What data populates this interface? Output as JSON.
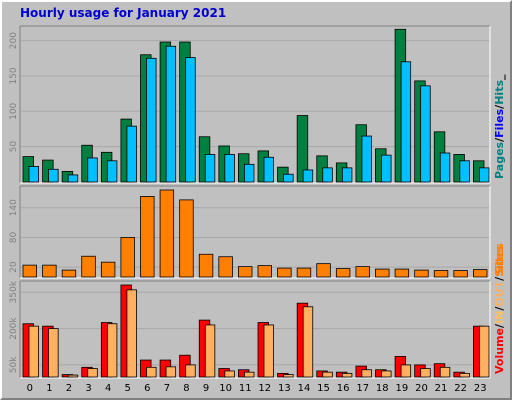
{
  "chart_data": {
    "type": "bar",
    "title": "Hourly usage for January 2021",
    "categories": [
      "0",
      "1",
      "2",
      "3",
      "4",
      "5",
      "6",
      "7",
      "8",
      "9",
      "10",
      "11",
      "12",
      "13",
      "14",
      "15",
      "16",
      "17",
      "18",
      "19",
      "20",
      "21",
      "22",
      "23"
    ],
    "panels": [
      {
        "id": "hits",
        "ylim": [
          0,
          215
        ],
        "yticks": [
          "50",
          "100",
          "150",
          "200"
        ],
        "ytick_values": [
          50,
          100,
          150,
          200
        ],
        "series": [
          {
            "name": "Pages",
            "color": "#008040",
            "values": [
              36,
              31,
              15,
              52,
              42,
              89,
              180,
              198,
              198,
              64,
              51,
              40,
              44,
              21,
              94,
              37,
              27,
              81,
              47,
              216,
              143,
              71,
              39,
              30
            ]
          },
          {
            "name": "Files",
            "color": "#0000ff",
            "values": [
              0,
              0,
              0,
              0,
              0,
              0,
              0,
              0,
              0,
              0,
              0,
              0,
              0,
              0,
              0,
              0,
              0,
              0,
              0,
              0,
              0,
              0,
              0,
              0
            ]
          },
          {
            "name": "Hits",
            "color": "#00c0ff",
            "values": [
              22,
              18,
              10,
              34,
              30,
              79,
              175,
              192,
              176,
              39,
              39,
              25,
              35,
              11,
              17,
              20,
              20,
              65,
              38,
              170,
              136,
              41,
              30,
              20
            ]
          }
        ],
        "legend": [
          {
            "label": "Pages",
            "color": "#008080"
          },
          {
            "label": "/",
            "color": "#000000"
          },
          {
            "label": "Files",
            "color": "#0000ff"
          },
          {
            "label": "/",
            "color": "#000000"
          },
          {
            "label": "Hits",
            "color": "#008080"
          },
          {
            "label": "_",
            "color": "#000000"
          }
        ]
      },
      {
        "id": "sites",
        "ylim": [
          0,
          176
        ],
        "yticks": [
          "20",
          "80",
          "140"
        ],
        "ytick_values": [
          20,
          80,
          140
        ],
        "series": [
          {
            "name": "Sites",
            "color": "#ff8000",
            "values": [
              24,
              24,
              14,
              42,
              30,
              80,
              163,
              176,
              156,
              46,
              41,
              21,
              23,
              18,
              18,
              27,
              17,
              21,
              16,
              16,
              14,
              13,
              13,
              15
            ]
          }
        ],
        "legend": [
          {
            "label": "Sites",
            "color": "#ff8000"
          }
        ]
      },
      {
        "id": "volume",
        "ylim": [
          0,
          380000
        ],
        "yticks": [
          "50k",
          "200k",
          "350k"
        ],
        "ytick_values": [
          50000,
          200000,
          350000
        ],
        "series": [
          {
            "name": "Volume",
            "color": "#ff0000",
            "values": [
              220000,
              210000,
              10000,
              40000,
              225000,
              380000,
              70000,
              70000,
              90000,
              235000,
              35000,
              30000,
              225000,
              15000,
              305000,
              25000,
              20000,
              45000,
              30000,
              85000,
              50000,
              55000,
              20000,
              210000
            ]
          },
          {
            "name": "KB IN",
            "color": "#ffc060",
            "values": [
              0,
              0,
              0,
              0,
              0,
              0,
              0,
              0,
              0,
              0,
              0,
              0,
              0,
              0,
              0,
              0,
              0,
              0,
              0,
              0,
              0,
              0,
              0,
              0
            ]
          },
          {
            "name": "KB OUT",
            "color": "#ffb060",
            "values": [
              210000,
              200000,
              8000,
              35000,
              220000,
              360000,
              40000,
              42000,
              50000,
              215000,
              25000,
              20000,
              215000,
              10000,
              290000,
              20000,
              15000,
              30000,
              25000,
              50000,
              35000,
              40000,
              15000,
              210000
            ]
          }
        ],
        "legend": [
          {
            "label": "Volume",
            "color": "#ff0000"
          },
          {
            "label": "/",
            "color": "#000000"
          },
          {
            "label": "IN",
            "color": "#ffc060"
          },
          {
            "label": "/",
            "color": "#000000"
          },
          {
            "label": "OUT",
            "color": "#ffb060"
          },
          {
            "label": "/",
            "color": "#000000"
          },
          {
            "label": "Sites",
            "color": "#ff8000"
          }
        ]
      }
    ]
  }
}
